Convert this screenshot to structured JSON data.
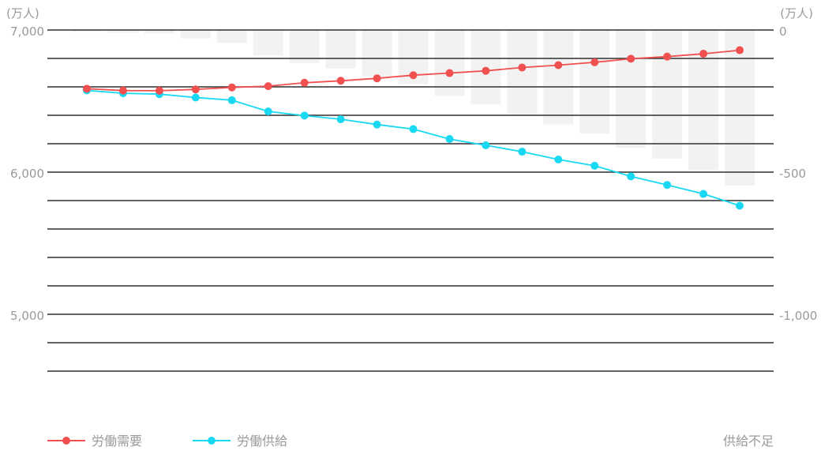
{
  "chart_data": {
    "type": "line",
    "left_axis": {
      "unit": "(万人)",
      "ticks": [
        {
          "value": 7000,
          "label": "7,000"
        },
        {
          "value": 6000,
          "label": "6,000"
        },
        {
          "value": 5000,
          "label": "5,000"
        }
      ],
      "range": [
        4580,
        7000
      ]
    },
    "right_axis": {
      "unit": "(万人)",
      "ticks": [
        {
          "value": 0,
          "label": "0"
        },
        {
          "value": -500,
          "label": "-500"
        },
        {
          "value": -1000,
          "label": "-1,000"
        }
      ],
      "range": [
        -1210,
        0
      ]
    },
    "gridline_step": 200,
    "point_count": 19,
    "series": [
      {
        "name": "労働需要",
        "color": "#f0504f",
        "axis": "left",
        "values": [
          6587,
          6574,
          6573,
          6582,
          6596,
          6605,
          6629,
          6643,
          6660,
          6682,
          6697,
          6713,
          6736,
          6753,
          6773,
          6798,
          6813,
          6833,
          6858
        ]
      },
      {
        "name": "労働供給",
        "color": "#19d9f2",
        "axis": "left",
        "values": [
          6575,
          6555,
          6549,
          6525,
          6506,
          6427,
          6398,
          6372,
          6335,
          6303,
          6233,
          6189,
          6144,
          6089,
          6045,
          5970,
          5910,
          5847,
          5764
        ]
      },
      {
        "name": "供給不足",
        "color": "#cccccc",
        "axis": "right",
        "values": [
          -6,
          -10,
          -12,
          -29,
          -45,
          -89,
          -116,
          -136,
          -163,
          -190,
          -232,
          -262,
          -296,
          -332,
          -364,
          -414,
          -452,
          -493,
          -547
        ]
      }
    ],
    "legend": {
      "position": "bottom",
      "items": [
        {
          "label": "労働需要",
          "color": "#f0504f"
        },
        {
          "label": "労働供給",
          "color": "#19d9f2"
        },
        {
          "label": "供給不足",
          "color": "#cccccc"
        }
      ]
    }
  }
}
